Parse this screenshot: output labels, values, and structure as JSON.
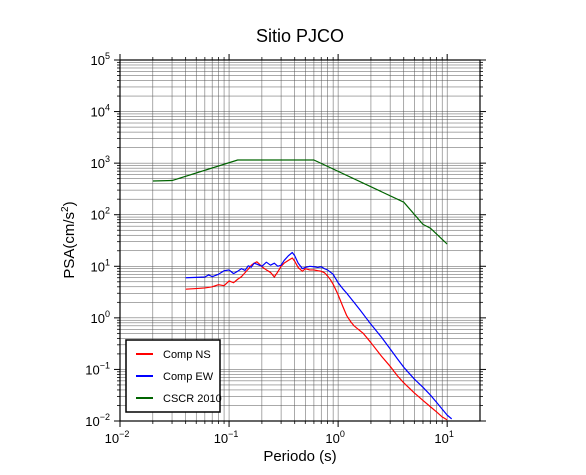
{
  "chart_data": {
    "type": "line",
    "title": "Sitio PJCO",
    "xlabel": "Periodo (s)",
    "ylabel": "PSA(cm/s",
    "ylabel_exp": "2",
    "ylabel_close": ")",
    "x_scale": "log",
    "y_scale": "log",
    "xlim": [
      0.01,
      20
    ],
    "ylim": [
      0.01,
      100000
    ],
    "x_ticks": [
      {
        "value": 0.01,
        "base": "10",
        "exp": "−2"
      },
      {
        "value": 0.1,
        "base": "10",
        "exp": "−1"
      },
      {
        "value": 1,
        "base": "10",
        "exp": "0"
      },
      {
        "value": 10,
        "base": "10",
        "exp": "1"
      }
    ],
    "y_ticks": [
      {
        "value": 0.01,
        "base": "10",
        "exp": "−2"
      },
      {
        "value": 0.1,
        "base": "10",
        "exp": "−1"
      },
      {
        "value": 1,
        "base": "10",
        "exp": "0"
      },
      {
        "value": 10,
        "base": "10",
        "exp": "1"
      },
      {
        "value": 100,
        "base": "10",
        "exp": "2"
      },
      {
        "value": 1000,
        "base": "10",
        "exp": "3"
      },
      {
        "value": 10000,
        "base": "10",
        "exp": "4"
      },
      {
        "value": 100000,
        "base": "10",
        "exp": "5"
      }
    ],
    "grid": true,
    "legend_position": "bottom-left",
    "series": [
      {
        "name": "Comp NS",
        "color": "#ff0000",
        "points": [
          [
            0.04,
            3.6
          ],
          [
            0.05,
            3.7
          ],
          [
            0.06,
            3.8
          ],
          [
            0.07,
            4.0
          ],
          [
            0.08,
            4.4
          ],
          [
            0.09,
            4.2
          ],
          [
            0.1,
            5.2
          ],
          [
            0.11,
            4.8
          ],
          [
            0.12,
            5.6
          ],
          [
            0.13,
            6.3
          ],
          [
            0.14,
            7.5
          ],
          [
            0.15,
            8.8
          ],
          [
            0.16,
            10.5
          ],
          [
            0.17,
            11.5
          ],
          [
            0.18,
            12.2
          ],
          [
            0.19,
            11.0
          ],
          [
            0.2,
            9.8
          ],
          [
            0.22,
            8.5
          ],
          [
            0.24,
            7.6
          ],
          [
            0.26,
            6.2
          ],
          [
            0.28,
            7.8
          ],
          [
            0.3,
            10.0
          ],
          [
            0.32,
            11.5
          ],
          [
            0.35,
            13.0
          ],
          [
            0.38,
            14.5
          ],
          [
            0.4,
            12.5
          ],
          [
            0.43,
            9.5
          ],
          [
            0.47,
            8.0
          ],
          [
            0.5,
            9.0
          ],
          [
            0.55,
            8.5
          ],
          [
            0.6,
            8.5
          ],
          [
            0.65,
            8.2
          ],
          [
            0.7,
            8.0
          ],
          [
            0.75,
            7.5
          ],
          [
            0.8,
            6.5
          ],
          [
            0.85,
            5.5
          ],
          [
            0.9,
            4.5
          ],
          [
            1.0,
            2.8
          ],
          [
            1.1,
            1.7
          ],
          [
            1.2,
            1.1
          ],
          [
            1.3,
            0.85
          ],
          [
            1.4,
            0.7
          ],
          [
            1.5,
            0.62
          ],
          [
            1.7,
            0.5
          ],
          [
            2.0,
            0.33
          ],
          [
            2.5,
            0.18
          ],
          [
            3.0,
            0.115
          ],
          [
            3.5,
            0.075
          ],
          [
            4.0,
            0.055
          ],
          [
            5.0,
            0.035
          ],
          [
            6.0,
            0.025
          ],
          [
            7.0,
            0.019
          ],
          [
            8.0,
            0.015
          ],
          [
            9.0,
            0.012
          ],
          [
            10.0,
            0.0105
          ]
        ]
      },
      {
        "name": "Comp EW",
        "color": "#0000ff",
        "points": [
          [
            0.04,
            6.0
          ],
          [
            0.05,
            6.1
          ],
          [
            0.06,
            6.2
          ],
          [
            0.065,
            6.8
          ],
          [
            0.07,
            6.3
          ],
          [
            0.08,
            7.0
          ],
          [
            0.09,
            8.2
          ],
          [
            0.1,
            8.5
          ],
          [
            0.11,
            7.2
          ],
          [
            0.12,
            8.0
          ],
          [
            0.13,
            9.0
          ],
          [
            0.14,
            8.3
          ],
          [
            0.15,
            10.2
          ],
          [
            0.16,
            9.6
          ],
          [
            0.17,
            11.5
          ],
          [
            0.18,
            11.0
          ],
          [
            0.2,
            10.0
          ],
          [
            0.22,
            12.0
          ],
          [
            0.24,
            10.5
          ],
          [
            0.26,
            11.5
          ],
          [
            0.28,
            10.0
          ],
          [
            0.3,
            10.5
          ],
          [
            0.32,
            13.0
          ],
          [
            0.35,
            16.0
          ],
          [
            0.38,
            18.5
          ],
          [
            0.4,
            16.0
          ],
          [
            0.43,
            11.5
          ],
          [
            0.47,
            9.0
          ],
          [
            0.5,
            9.5
          ],
          [
            0.55,
            10.0
          ],
          [
            0.6,
            9.8
          ],
          [
            0.65,
            9.5
          ],
          [
            0.7,
            9.8
          ],
          [
            0.75,
            9.0
          ],
          [
            0.8,
            8.5
          ],
          [
            0.9,
            7.0
          ],
          [
            1.0,
            4.8
          ],
          [
            1.1,
            3.7
          ],
          [
            1.2,
            3.0
          ],
          [
            1.4,
            2.0
          ],
          [
            1.6,
            1.4
          ],
          [
            2.0,
            0.75
          ],
          [
            2.5,
            0.42
          ],
          [
            3.0,
            0.25
          ],
          [
            3.5,
            0.16
          ],
          [
            4.0,
            0.11
          ],
          [
            5.0,
            0.065
          ],
          [
            6.0,
            0.045
          ],
          [
            7.0,
            0.032
          ],
          [
            8.0,
            0.023
          ],
          [
            9.0,
            0.017
          ],
          [
            10.0,
            0.013
          ],
          [
            11.0,
            0.011
          ]
        ]
      },
      {
        "name": "CSCR 2010",
        "color": "#006400",
        "points": [
          [
            0.02,
            450
          ],
          [
            0.03,
            460
          ],
          [
            0.12,
            1150
          ],
          [
            0.6,
            1150
          ],
          [
            4.0,
            175
          ],
          [
            6.0,
            65
          ],
          [
            7.0,
            55
          ],
          [
            10.0,
            27
          ]
        ]
      }
    ]
  }
}
